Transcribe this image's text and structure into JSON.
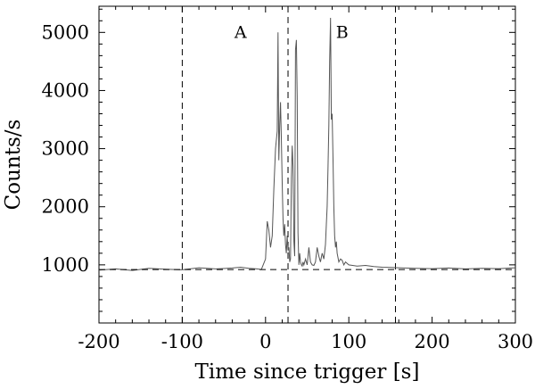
{
  "chart_data": {
    "type": "line",
    "xlabel": "Time since trigger [s]",
    "ylabel": "Counts/s",
    "xlim": [
      -200,
      300
    ],
    "ylim": [
      0,
      5450
    ],
    "x_ticks": [
      "-200",
      "-100",
      "0",
      "100",
      "200",
      "300"
    ],
    "x_tick_values": [
      -200,
      -100,
      0,
      100,
      200,
      300
    ],
    "y_ticks": [
      "1000",
      "2000",
      "3000",
      "4000",
      "5000"
    ],
    "y_tick_values": [
      1000,
      2000,
      3000,
      4000,
      5000
    ],
    "background_level": 920,
    "vertical_markers": [
      -100,
      27,
      156
    ],
    "region_labels": [
      {
        "text": "A",
        "x": -30,
        "y": 5000
      },
      {
        "text": "B",
        "x": 92,
        "y": 5000
      }
    ],
    "series": [
      {
        "style": "solid",
        "x": [
          -200,
          -180,
          -160,
          -140,
          -120,
          -100,
          -80,
          -60,
          -40,
          -30,
          -20,
          -10,
          -5,
          0,
          2,
          4,
          6,
          8,
          10,
          12,
          14,
          15,
          16,
          17,
          18,
          19,
          20,
          21,
          22,
          23,
          24,
          25,
          26,
          27,
          28,
          29,
          30,
          31,
          32,
          33,
          34,
          35,
          36,
          37,
          38,
          39,
          40,
          41,
          42,
          43,
          44,
          45,
          46,
          48,
          50,
          52,
          54,
          56,
          58,
          60,
          62,
          64,
          66,
          68,
          70,
          72,
          73,
          74,
          75,
          76,
          77,
          78,
          79,
          80,
          81,
          82,
          83,
          84,
          85,
          86,
          88,
          90,
          92,
          94,
          96,
          100,
          110,
          120,
          130,
          140,
          150,
          160,
          180,
          200,
          220,
          240,
          260,
          280,
          300
        ],
        "y": [
          910,
          930,
          905,
          940,
          925,
          915,
          950,
          930,
          945,
          960,
          940,
          930,
          920,
          1100,
          1750,
          1600,
          1300,
          1500,
          2300,
          3000,
          3300,
          5000,
          2800,
          3400,
          3800,
          3200,
          2400,
          1800,
          1500,
          1700,
          1350,
          1200,
          1500,
          1250,
          1300,
          1050,
          1100,
          2500,
          3050,
          2700,
          1400,
          1150,
          4700,
          4870,
          3900,
          1550,
          1000,
          1200,
          1050,
          1000,
          980,
          1050,
          1000,
          1100,
          1000,
          1300,
          1050,
          1000,
          990,
          1050,
          1300,
          1150,
          1050,
          1200,
          1100,
          1350,
          1700,
          2000,
          2700,
          3400,
          4500,
          5250,
          3500,
          3600,
          2800,
          2000,
          1500,
          1300,
          1400,
          1200,
          1050,
          1100,
          1080,
          1000,
          1050,
          1000,
          980,
          990,
          970,
          960,
          955,
          950,
          940,
          935,
          945,
          930,
          940,
          935,
          950
        ]
      },
      {
        "style": "dashed",
        "x": [
          -200,
          300
        ],
        "y": [
          920,
          920
        ]
      }
    ]
  }
}
